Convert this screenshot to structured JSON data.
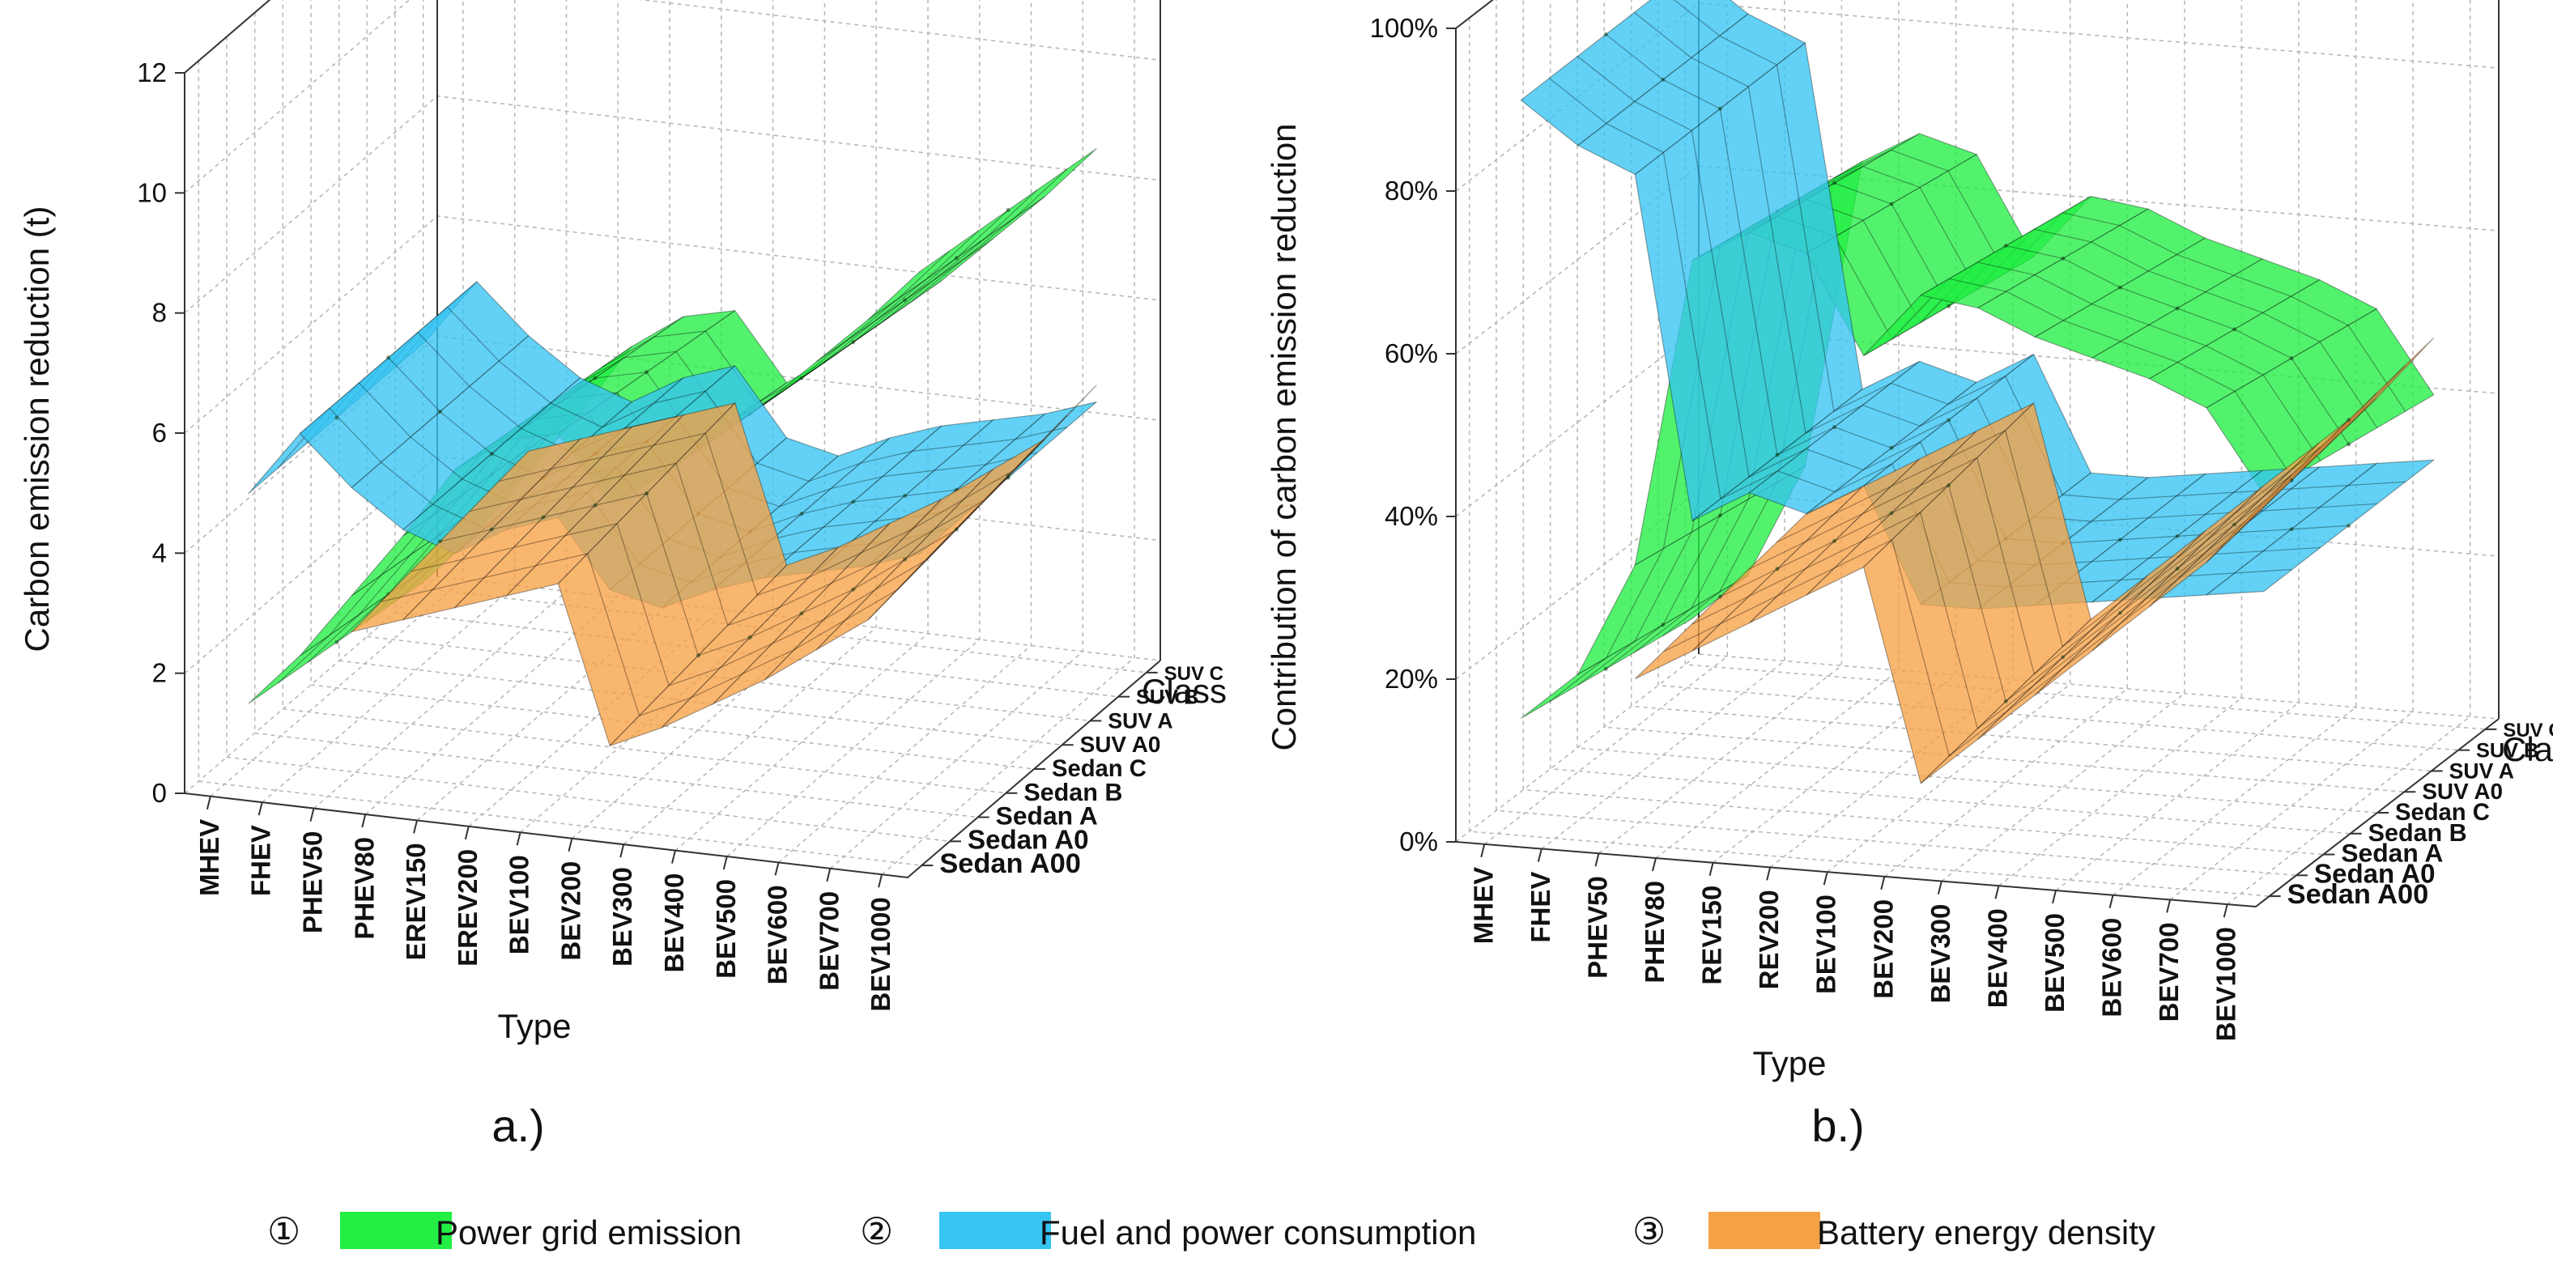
{
  "figure": {
    "legend": [
      {
        "number": "①",
        "label": "Power grid emission",
        "color": "#22ee44"
      },
      {
        "number": "②",
        "label": "Fuel and power consumption",
        "color": "#36c4f2"
      },
      {
        "number": "③",
        "label": "Battery energy density",
        "color": "#f7a145"
      }
    ]
  },
  "chart_data": [
    {
      "type": "surface3d",
      "panel_label": "a.)",
      "zlabel": "Carbon emission reduction (t)",
      "xlabel": "Type",
      "ylabel": "Class",
      "zlim": [
        0,
        12
      ],
      "z_ticks": [
        "0",
        "2",
        "4",
        "6",
        "8",
        "10",
        "12"
      ],
      "types": [
        "MHEV",
        "FHEV",
        "PHEV50",
        "PHEV80",
        "EREV150",
        "EREV200",
        "BEV100",
        "BEV200",
        "BEV300",
        "BEV400",
        "BEV500",
        "BEV600",
        "BEV700",
        "BEV1000"
      ],
      "classes": [
        "Sedan A00",
        "Sedan A0",
        "Sedan A",
        "Sedan B",
        "Sedan C",
        "SUV A0",
        "SUV A",
        "SUV B",
        "SUV C"
      ],
      "series": [
        {
          "name": "Power grid emission",
          "color": "#22ee44",
          "values": [
            1.0,
            1.9,
            3.0,
            4.1,
            5.3,
            5.9,
            6.1,
            5.0,
            5.6,
            6.3,
            7.0,
            7.8,
            8.6,
            9.5
          ]
        },
        {
          "name": "Fuel and power consumption",
          "color": "#36c4f2",
          "values": [
            4.5,
            5.6,
            4.8,
            4.2,
            3.9,
            4.4,
            4.7,
            3.6,
            3.4,
            3.8,
            4.1,
            4.3,
            4.5,
            4.8
          ]
        },
        {
          "name": "Battery energy density",
          "color": "#f7a145",
          "values": [
            null,
            null,
            2.4,
            2.7,
            3.0,
            3.3,
            3.6,
            1.0,
            1.4,
            1.9,
            2.4,
            3.0,
            3.6,
            4.6
          ]
        }
      ]
    },
    {
      "type": "surface3d",
      "panel_label": "b.)",
      "zlabel": "Contribution of carbon emission reduction",
      "xlabel": "Type",
      "ylabel": "Class",
      "zlim": [
        0,
        100
      ],
      "z_ticks": [
        "0%",
        "20%",
        "40%",
        "60%",
        "80%",
        "100%"
      ],
      "types": [
        "MHEV",
        "FHEV",
        "PHEV50",
        "PHEV80",
        "REV150",
        "REV200",
        "BEV100",
        "BEV200",
        "BEV300",
        "BEV400",
        "BEV500",
        "BEV600",
        "BEV700",
        "BEV1000"
      ],
      "classes": [
        "Sedan A00",
        "Sedan A0",
        "Sedan A",
        "Sedan B",
        "Sedan C",
        "SUV A0",
        "SUV A",
        "SUV B",
        "SUV C"
      ],
      "series": [
        {
          "name": "Power grid emission",
          "color": "#22ee44",
          "values": [
            12,
            18,
            32,
            70,
            74,
            72,
            60,
            68,
            67,
            64,
            62,
            60,
            57,
            47
          ]
        },
        {
          "name": "Fuel and power consumption",
          "color": "#36c4f2",
          "values": [
            88,
            83,
            80,
            38,
            42,
            40,
            44,
            30,
            30,
            31,
            32,
            33,
            34,
            35
          ]
        },
        {
          "name": "Battery energy density",
          "color": "#f7a145",
          "values": [
            null,
            null,
            18,
            22,
            26,
            30,
            34,
            8,
            14,
            20,
            26,
            32,
            38,
            46
          ]
        }
      ]
    }
  ]
}
